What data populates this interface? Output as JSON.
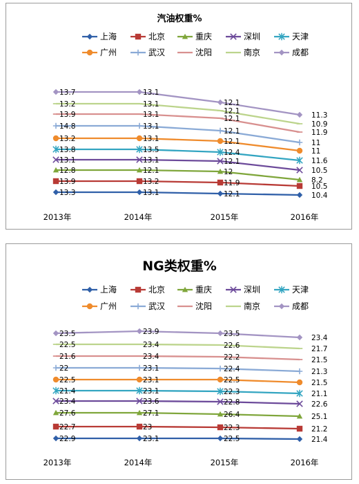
{
  "colors": {
    "上海": "#2f5fa8",
    "北京": "#b83a35",
    "重庆": "#7fa63b",
    "深圳": "#6c4a9a",
    "天津": "#33a5c1",
    "广州": "#ef8b2c",
    "武汉": "#8aaad6",
    "沈阳": "#d8908f",
    "南京": "#bcd48c",
    "成都": "#a394c3"
  },
  "chart_data": [
    {
      "type": "line",
      "title": "汽油权重%",
      "categories": [
        "2013年",
        "2014年",
        "2015年",
        "2016年"
      ],
      "legend_position": "top",
      "grid": false,
      "series": [
        {
          "name": "上海",
          "marker": "diamond",
          "values": [
            13.3,
            13.1,
            12.1,
            10.4
          ]
        },
        {
          "name": "北京",
          "marker": "square",
          "values": [
            13.9,
            13.2,
            11.9,
            10.5
          ]
        },
        {
          "name": "重庆",
          "marker": "triangle",
          "values": [
            12.8,
            12.1,
            12,
            8.2
          ]
        },
        {
          "name": "深圳",
          "marker": "x",
          "values": [
            13.1,
            13.1,
            12.1,
            10.5
          ]
        },
        {
          "name": "天津",
          "marker": "asterisk",
          "values": [
            13.8,
            13.5,
            12.4,
            11.6
          ]
        },
        {
          "name": "广州",
          "marker": "circle",
          "values": [
            13.2,
            13.1,
            12.1,
            11
          ]
        },
        {
          "name": "武汉",
          "marker": "plus",
          "values": [
            14.8,
            13.1,
            12.1,
            11
          ]
        },
        {
          "name": "沈阳",
          "marker": "dash",
          "values": [
            13.9,
            13.1,
            12.1,
            11.9
          ]
        },
        {
          "name": "南京",
          "marker": "dash",
          "values": [
            13.2,
            13.1,
            12.1,
            10.9
          ]
        },
        {
          "name": "成都",
          "marker": "diamond",
          "values": [
            13.7,
            13.1,
            12.1,
            11.3
          ]
        }
      ]
    },
    {
      "type": "line",
      "title": "NG类权重%",
      "categories": [
        "2013年",
        "2014年",
        "2015年",
        "2016年"
      ],
      "legend_position": "top",
      "grid": false,
      "series": [
        {
          "name": "上海",
          "marker": "diamond",
          "values": [
            22.9,
            23.1,
            22.5,
            21.4
          ]
        },
        {
          "name": "北京",
          "marker": "square",
          "values": [
            22.7,
            23,
            22.3,
            21.2
          ]
        },
        {
          "name": "重庆",
          "marker": "triangle",
          "values": [
            27.6,
            27.1,
            26.4,
            25.1
          ]
        },
        {
          "name": "深圳",
          "marker": "x",
          "values": [
            23.4,
            23.6,
            22.8,
            22.6
          ]
        },
        {
          "name": "天津",
          "marker": "asterisk",
          "values": [
            21.4,
            23.1,
            22.3,
            21.1
          ]
        },
        {
          "name": "广州",
          "marker": "circle",
          "values": [
            22.5,
            23.1,
            22.5,
            21.5
          ]
        },
        {
          "name": "武汉",
          "marker": "plus",
          "values": [
            22,
            23.1,
            22.4,
            21.3
          ]
        },
        {
          "name": "沈阳",
          "marker": "dash",
          "values": [
            21.6,
            23.4,
            22.2,
            21.5
          ]
        },
        {
          "name": "南京",
          "marker": "dash",
          "values": [
            22.5,
            23.4,
            22.6,
            21.7
          ]
        },
        {
          "name": "成都",
          "marker": "diamond",
          "values": [
            23.5,
            23.9,
            23.5,
            23.4
          ]
        }
      ]
    }
  ]
}
